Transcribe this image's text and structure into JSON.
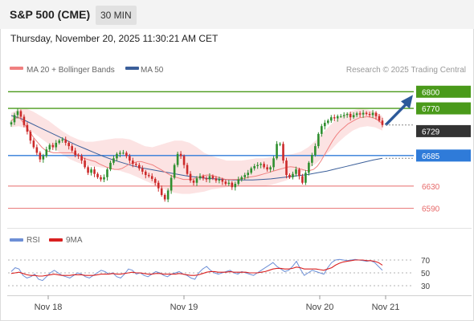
{
  "header": {
    "title": "S&P 500 (CME)",
    "interval": "30 MIN"
  },
  "datetime": "Thursday, November 20, 2025 11:30:21 AM CET",
  "legend": {
    "bollinger": "MA 20 + Bollinger Bands",
    "ma50": "MA 50",
    "rsi": "RSI",
    "rsi_ma": "9MA"
  },
  "credit": "Research © 2025 Trading Central",
  "colors": {
    "resistance": "#4a9a1a",
    "current": "#333333",
    "support_pivot": "#2f7bd9",
    "support": "#e76a6a",
    "up_candle": "#2f8f2f",
    "down_candle": "#cc2a2a",
    "bollinger_fill": "#fbdcdc",
    "ma20": "#f08080",
    "ma50": "#3b5f9a",
    "rsi": "#6d8fd6",
    "rsi_ma": "#d92020",
    "arrow": "#2d5a9a"
  },
  "chart_data": [
    {
      "type": "candlestick",
      "title": "S&P 500 (CME)",
      "timeframe": "30 MIN",
      "x_labels": [
        "Nov 18",
        "Nov 19",
        "Nov 20",
        "Nov 21"
      ],
      "y_range": [
        6572,
        6812
      ],
      "levels": [
        {
          "value": 6800,
          "label": "6800",
          "kind": "resistance"
        },
        {
          "value": 6770,
          "label": "6770",
          "kind": "resistance"
        },
        {
          "value": 6729,
          "label": "6729",
          "kind": "current"
        },
        {
          "value": 6685,
          "label": "6685",
          "kind": "pivot"
        },
        {
          "value": 6630,
          "label": "6630",
          "kind": "support"
        },
        {
          "value": 6590,
          "label": "6590",
          "kind": "support"
        }
      ],
      "closes": [
        6745,
        6758,
        6765,
        6755,
        6740,
        6728,
        6712,
        6700,
        6690,
        6678,
        6684,
        6696,
        6704,
        6700,
        6708,
        6712,
        6714,
        6708,
        6702,
        6694,
        6686,
        6684,
        6676,
        6664,
        6654,
        6660,
        6652,
        6646,
        6642,
        6646,
        6660,
        6672,
        6680,
        6688,
        6690,
        6690,
        6684,
        6676,
        6670,
        6668,
        6662,
        6656,
        6650,
        6648,
        6643,
        6636,
        6626,
        6614,
        6606,
        6622,
        6645,
        6668,
        6688,
        6684,
        6668,
        6652,
        6640,
        6636,
        6644,
        6648,
        6644,
        6642,
        6648,
        6644,
        6640,
        6642,
        6638,
        6634,
        6636,
        6628,
        6634,
        6642,
        6646,
        6650,
        6654,
        6662,
        6666,
        6668,
        6670,
        6664,
        6660,
        6664,
        6680,
        6706,
        6706,
        6676,
        6650,
        6646,
        6652,
        6660,
        6648,
        6636,
        6654,
        6672,
        6686,
        6702,
        6724,
        6738,
        6744,
        6748,
        6754,
        6752,
        6756,
        6756,
        6758,
        6760,
        6754,
        6758,
        6761,
        6759,
        6762,
        6760,
        6758,
        6762,
        6756,
        6748,
        6740
      ],
      "price_extremes": {
        "low": 6614,
        "high": 6768
      },
      "ma20": [
        6748,
        6752,
        6754,
        6746,
        6736,
        6726,
        6716,
        6708,
        6700,
        6694,
        6692,
        6690,
        6690,
        6690,
        6690,
        6690,
        6690,
        6688,
        6684,
        6680,
        6678,
        6676,
        6674,
        6670,
        6667,
        6664,
        6662,
        6660,
        6660,
        6662,
        6666,
        6670,
        6672,
        6674,
        6674,
        6672,
        6670,
        6668,
        6664,
        6660,
        6656,
        6652,
        6648,
        6646,
        6644,
        6642,
        6642,
        6642,
        6644,
        6646,
        6648,
        6650,
        6650,
        6648,
        6646,
        6644,
        6642,
        6642,
        6642,
        6642,
        6643,
        6644,
        6646,
        6647,
        6648,
        6650,
        6652,
        6654,
        6656,
        6658,
        6660,
        6662,
        6664,
        6665,
        6664,
        6662,
        6660,
        6658,
        6658,
        6660,
        6666,
        6676,
        6688,
        6700,
        6712,
        6722,
        6730,
        6736,
        6742,
        6746,
        6750,
        6753,
        6754,
        6755,
        6754,
        6752,
        6748,
        6742
      ],
      "ma50": [
        6757,
        6752,
        6744,
        6736,
        6728,
        6720,
        6712,
        6704,
        6697,
        6690,
        6683,
        6677,
        6672,
        6667,
        6663,
        6660,
        6657,
        6654,
        6651,
        6648,
        6646,
        6644,
        6643,
        6642,
        6641,
        6641,
        6641,
        6642,
        6643,
        6645,
        6647,
        6649,
        6651,
        6654,
        6657,
        6661,
        6665,
        6669,
        6673,
        6677,
        6680
      ],
      "bollinger_upper": [
        6762,
        6768,
        6770,
        6764,
        6756,
        6748,
        6738,
        6728,
        6720,
        6714,
        6710,
        6710,
        6712,
        6714,
        6716,
        6716,
        6714,
        6708,
        6702,
        6700,
        6704,
        6708,
        6712,
        6712,
        6708,
        6700,
        6690,
        6684,
        6680,
        6676,
        6676,
        6676,
        6678,
        6680,
        6680,
        6682,
        6684,
        6686,
        6688,
        6692,
        6700,
        6712,
        6726,
        6740,
        6752,
        6760,
        6766,
        6770,
        6768,
        6764,
        6756
      ],
      "bollinger_lower": [
        6736,
        6738,
        6734,
        6726,
        6716,
        6706,
        6696,
        6686,
        6678,
        6672,
        6668,
        6666,
        6664,
        6662,
        6660,
        6656,
        6652,
        6646,
        6640,
        6634,
        6628,
        6622,
        6618,
        6616,
        6616,
        6618,
        6620,
        6624,
        6626,
        6628,
        6630,
        6630,
        6630,
        6630,
        6630,
        6632,
        6636,
        6640,
        6646,
        6654,
        6662,
        6670,
        6682,
        6694,
        6708,
        6720,
        6730,
        6736,
        6738,
        6736,
        6730
      ]
    },
    {
      "type": "line",
      "series": [
        {
          "name": "RSI"
        },
        {
          "name": "9MA"
        }
      ],
      "y_range": [
        20,
        80
      ],
      "y_ticks": [
        70,
        50,
        30
      ],
      "reference_lines": [
        70,
        50,
        30
      ],
      "rsi": [
        52,
        58,
        56,
        46,
        42,
        44,
        48,
        40,
        38,
        44,
        50,
        54,
        50,
        46,
        44,
        42,
        46,
        50,
        48,
        44,
        42,
        46,
        50,
        54,
        52,
        48,
        50,
        44,
        42,
        48,
        56,
        54,
        48,
        50,
        46,
        44,
        48,
        52,
        50,
        46,
        44,
        48,
        50,
        52,
        48,
        46,
        42,
        40,
        50,
        56,
        60,
        54,
        50,
        48,
        50,
        52,
        54,
        50,
        48,
        52,
        50,
        48,
        46,
        50,
        54,
        58,
        62,
        66,
        60,
        56,
        52,
        54,
        60,
        68,
        56,
        46,
        50,
        54,
        52,
        50,
        48,
        58,
        66,
        70,
        71,
        70,
        69,
        70,
        71,
        70,
        69,
        68,
        69,
        66,
        60,
        54
      ],
      "rsi_ma": [
        49,
        50,
        51,
        49,
        47,
        46,
        46,
        45,
        45,
        46,
        47,
        48,
        47,
        46,
        46,
        46,
        47,
        47,
        47,
        46,
        46,
        46,
        47,
        48,
        48,
        48,
        49,
        48,
        48,
        49,
        50,
        51,
        50,
        50,
        49,
        48,
        48,
        49,
        49,
        48,
        48,
        48,
        48,
        49,
        48,
        47,
        46,
        46,
        47,
        49,
        51,
        52,
        52,
        51,
        51,
        51,
        52,
        51,
        51,
        51,
        51,
        50,
        50,
        50,
        51,
        52,
        54,
        56,
        57,
        57,
        56,
        56,
        57,
        59,
        58,
        56,
        56,
        56,
        56,
        55,
        54,
        56,
        58,
        62,
        65,
        67,
        68,
        69,
        70,
        70,
        70,
        69,
        69,
        68,
        66,
        62
      ]
    }
  ]
}
